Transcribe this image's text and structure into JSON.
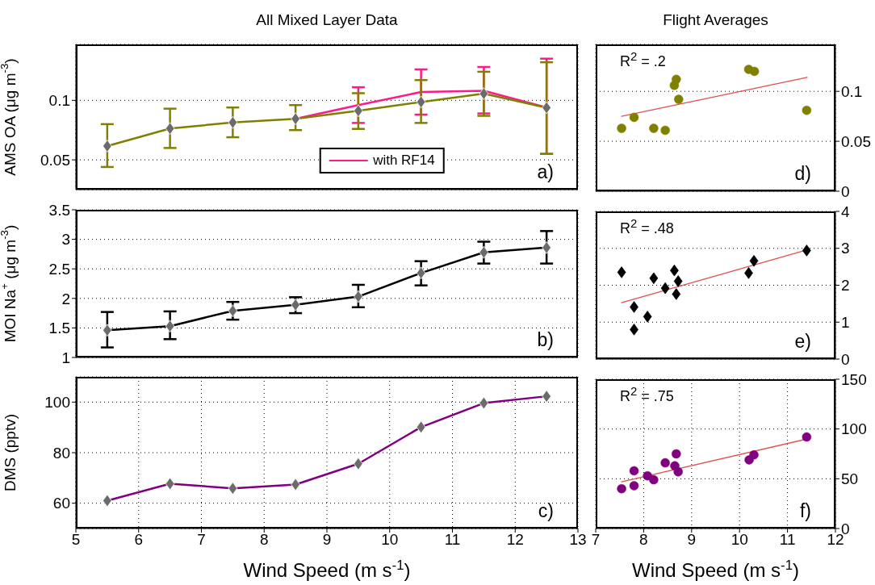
{
  "chart_data": [
    {
      "type": "line",
      "title": "All Mixed Layer Data",
      "ylabel": "AMS OA (μg m$^{-3}$)",
      "x": [
        5.5,
        6.5,
        7.5,
        8.5,
        9.5,
        10.5,
        11.5,
        12.5
      ],
      "series": [
        {
          "name": "with RF14",
          "color": "#ff1a8c",
          "marker": "none",
          "values": [
            null,
            null,
            null,
            0.0845,
            0.096,
            0.107,
            0.108,
            0.094
          ],
          "errors": [
            null,
            null,
            null,
            null,
            [
              0.081,
              0.111
            ],
            [
              0.088,
              0.126
            ],
            [
              0.089,
              0.128
            ],
            [
              0.055,
              0.135
            ]
          ]
        },
        {
          "color": "#808000",
          "values": [
            0.0616,
            0.0763,
            0.0814,
            0.0845,
            0.0912,
            0.0986,
            0.1056,
            0.0938
          ],
          "errors": [
            [
              0.044,
              0.08
            ],
            [
              0.06,
              0.093
            ],
            [
              0.069,
              0.094
            ],
            [
              0.075,
              0.096
            ],
            [
              0.076,
              0.106
            ],
            [
              0.081,
              0.117
            ],
            [
              0.087,
              0.124
            ],
            [
              0.055,
              0.132
            ]
          ]
        }
      ],
      "xlim": [
        5,
        13
      ],
      "xticks": [
        5,
        6,
        7,
        8,
        9,
        10,
        11,
        12,
        13
      ],
      "ylim": [
        0.025,
        0.147
      ],
      "yticks": [
        0.05,
        0.1
      ],
      "grid": true,
      "marker": "diamond",
      "legend": "bottom",
      "tick_labels": "y",
      "annotations": [
        "a)"
      ]
    },
    {
      "type": "scatter",
      "title": "Flight Averages",
      "series": [
        {
          "color": "#808000",
          "x": [
            7.54,
            7.8,
            8.21,
            8.45,
            8.64,
            8.68,
            8.73,
            10.19,
            10.31,
            11.4
          ],
          "values": [
            0.063,
            0.074,
            0.063,
            0.061,
            0.106,
            0.112,
            0.092,
            0.122,
            0.12,
            0.081
          ]
        },
        {
          "type": "line",
          "color": "#e05050",
          "marker": "none",
          "x": [
            7.54,
            11.41
          ],
          "values": [
            0.075,
            0.114
          ]
        }
      ],
      "xlim": [
        7,
        12
      ],
      "xticks": [
        7,
        8,
        9,
        10,
        11,
        12
      ],
      "ylim": [
        0,
        0.147
      ],
      "yticks": [
        0,
        0.05,
        0.1
      ],
      "grid": true,
      "marker": "circle",
      "tick_labels": "y",
      "annotations": [
        "R$^{2}$ = .2",
        "d)"
      ]
    },
    {
      "type": "line",
      "ylabel": "MOI Na$^{+}$ (μg m$^{-3}$)",
      "x": [
        5.5,
        6.5,
        7.5,
        8.5,
        9.5,
        10.5,
        11.5,
        12.5
      ],
      "series": [
        {
          "color": "#000000",
          "values": [
            1.46,
            1.53,
            1.79,
            1.89,
            2.03,
            2.43,
            2.78,
            2.86
          ],
          "errors": [
            [
              1.17,
              1.77
            ],
            [
              1.31,
              1.78
            ],
            [
              1.64,
              1.94
            ],
            [
              1.75,
              2.02
            ],
            [
              1.85,
              2.23
            ],
            [
              2.22,
              2.63
            ],
            [
              2.59,
              2.96
            ],
            [
              2.59,
              3.14
            ]
          ]
        }
      ],
      "xlim": [
        5,
        13
      ],
      "xticks": [
        5,
        6,
        7,
        8,
        9,
        10,
        11,
        12,
        13
      ],
      "ylim": [
        1,
        3.5
      ],
      "yticks": [
        1,
        1.5,
        2,
        2.5,
        3,
        3.5
      ],
      "grid": true,
      "marker": "diamond",
      "tick_labels": "y",
      "annotations": [
        "b)"
      ]
    },
    {
      "type": "scatter",
      "series": [
        {
          "color": "#000000",
          "x": [
            7.54,
            7.8,
            7.8,
            8.08,
            8.21,
            8.45,
            8.64,
            8.72,
            8.68,
            10.19,
            10.3,
            11.4
          ],
          "values": [
            2.35,
            1.41,
            0.8,
            1.15,
            2.19,
            1.92,
            2.4,
            2.11,
            1.76,
            2.33,
            2.66,
            2.94
          ]
        },
        {
          "type": "line",
          "color": "#e05050",
          "marker": "none",
          "x": [
            7.54,
            11.41
          ],
          "values": [
            1.53,
            2.96
          ]
        }
      ],
      "xlim": [
        7,
        12
      ],
      "xticks": [
        7,
        8,
        9,
        10,
        11,
        12
      ],
      "ylim": [
        0,
        4
      ],
      "yticks": [
        0,
        1,
        2,
        3,
        4
      ],
      "grid": true,
      "marker": "diamond",
      "tick_labels": "y",
      "annotations": [
        "R$^{2}$ = .48",
        "e)"
      ]
    },
    {
      "type": "line",
      "ylabel": "DMS (pptv)",
      "xlabel": "Wind Speed (m s$^{-1}$)",
      "x": [
        5.5,
        6.5,
        7.5,
        8.5,
        9.5,
        10.5,
        11.5,
        12.5
      ],
      "series": [
        {
          "color": "#800080",
          "values": [
            61,
            67.7,
            65.9,
            67.4,
            75.6,
            90.1,
            99.6,
            102.3
          ]
        }
      ],
      "xlim": [
        5,
        13
      ],
      "xticks": [
        5,
        6,
        7,
        8,
        9,
        10,
        11,
        12,
        13
      ],
      "ylim": [
        50,
        110
      ],
      "yticks": [
        60,
        80,
        100
      ],
      "grid": true,
      "marker": "diamond",
      "annotations": [
        "c)"
      ]
    },
    {
      "type": "scatter",
      "xlabel": "Wind Speed (m s$^{-1}$)",
      "series": [
        {
          "color": "#800080",
          "x": [
            7.54,
            7.8,
            7.8,
            8.08,
            8.21,
            8.45,
            8.68,
            8.65,
            8.72,
            10.2,
            10.3,
            11.4
          ],
          "values": [
            40,
            58,
            43,
            53,
            49,
            66,
            75,
            63,
            57,
            69,
            74,
            92
          ]
        },
        {
          "type": "line",
          "color": "#e05050",
          "marker": "none",
          "x": [
            7.54,
            11.41
          ],
          "values": [
            47,
            90
          ]
        }
      ],
      "xlim": [
        7,
        12
      ],
      "xticks": [
        7,
        8,
        9,
        10,
        11,
        12
      ],
      "ylim": [
        0,
        150
      ],
      "yticks": [
        0,
        50,
        100,
        150
      ],
      "grid": true,
      "marker": "circle",
      "annotations": [
        "R$^{2}$ = .75",
        "f)"
      ]
    }
  ]
}
